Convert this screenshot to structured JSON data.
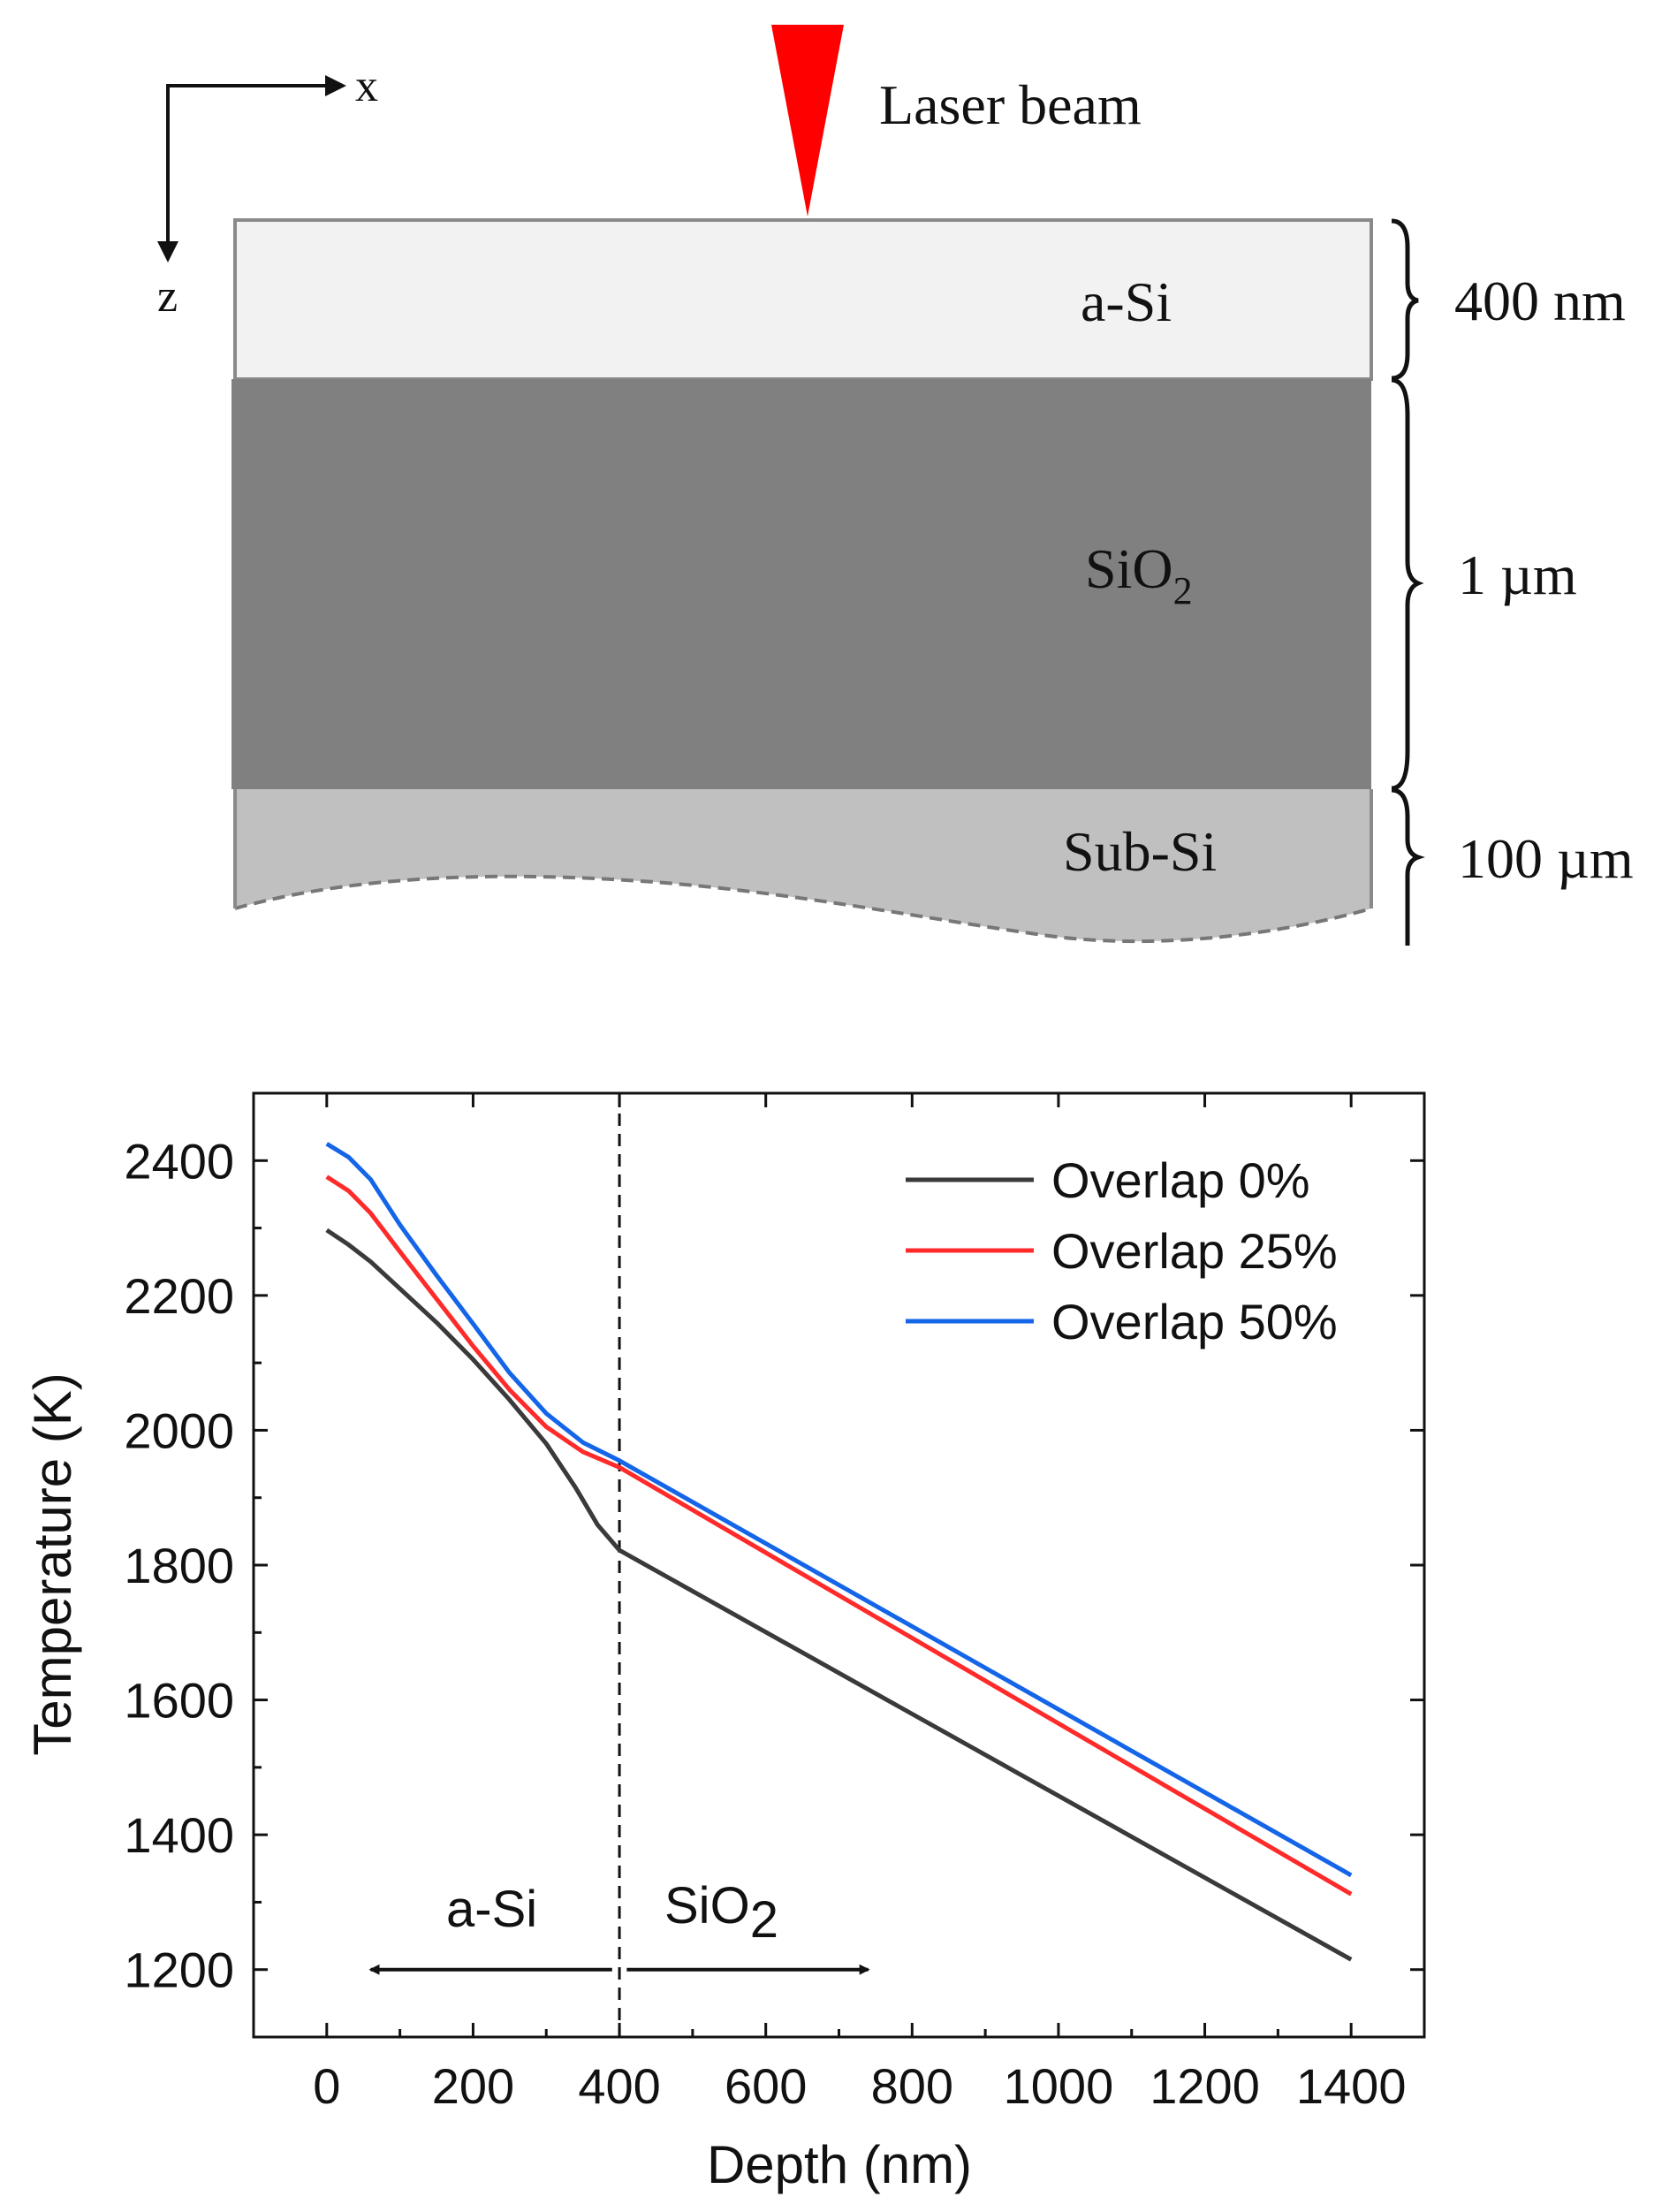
{
  "schematic": {
    "axis_x_label": "x",
    "axis_z_label": "z",
    "laser_label": "Laser beam",
    "layers": [
      {
        "name": "a-Si",
        "thickness": "400 nm",
        "color": "#f2f2f2"
      },
      {
        "name": "SiO",
        "subscript": "2",
        "thickness": "1 µm",
        "color": "#808080"
      },
      {
        "name": "Sub-Si",
        "thickness": "100 µm",
        "color": "#c0c0c0"
      }
    ],
    "laser_color": "#ff0000"
  },
  "chart_data": {
    "type": "line",
    "xlabel": "Depth (nm)",
    "ylabel": "Temperature (K)",
    "xlim": [
      -100,
      1500
    ],
    "ylim": [
      1100,
      2500
    ],
    "xticks": [
      0,
      200,
      400,
      600,
      800,
      1000,
      1200,
      1400
    ],
    "yticks": [
      1200,
      1400,
      1600,
      1800,
      2000,
      2200,
      2400
    ],
    "legend_position": "top-right",
    "series": [
      {
        "name": "Overlap 0%",
        "color": "#3a3a3a",
        "x": [
          0,
          30,
          60,
          100,
          150,
          200,
          250,
          300,
          340,
          370,
          400,
          1400
        ],
        "y": [
          2297,
          2275,
          2250,
          2210,
          2160,
          2105,
          2045,
          1980,
          1915,
          1860,
          1822,
          1215
        ]
      },
      {
        "name": "Overlap 25%",
        "color": "#ff2a2a",
        "x": [
          0,
          30,
          60,
          100,
          150,
          200,
          250,
          300,
          350,
          400,
          1400
        ],
        "y": [
          2376,
          2355,
          2322,
          2265,
          2195,
          2125,
          2060,
          2005,
          1968,
          1945,
          1312
        ]
      },
      {
        "name": "Overlap 50%",
        "color": "#1565e8",
        "x": [
          0,
          30,
          60,
          100,
          150,
          200,
          250,
          300,
          350,
          400,
          1400
        ],
        "y": [
          2425,
          2405,
          2372,
          2305,
          2230,
          2158,
          2085,
          2025,
          1982,
          1955,
          1340
        ]
      }
    ],
    "divider": {
      "x": 400,
      "style": "dashed"
    },
    "annotations": [
      {
        "text": "a-Si",
        "arrow": "left",
        "arrow_from": 390,
        "arrow_to": 60
      },
      {
        "text": "SiO",
        "subscript": "2",
        "arrow": "right",
        "arrow_from": 410,
        "arrow_to": 740
      }
    ]
  }
}
